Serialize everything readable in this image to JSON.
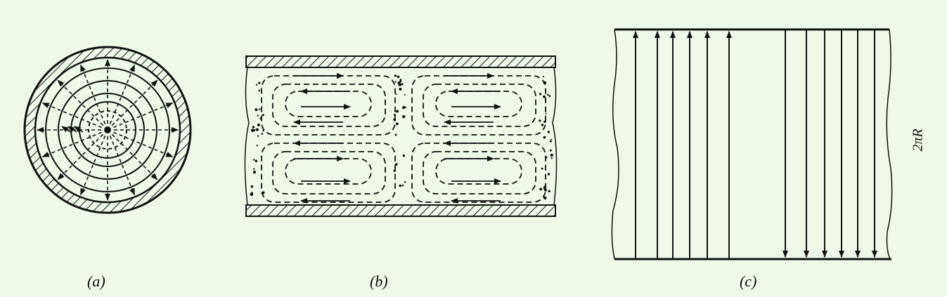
{
  "figure": {
    "captions": {
      "a": "(a)",
      "b": "(b)",
      "c": "(c)"
    },
    "panel_c_side_label": "2πR",
    "colors": {
      "background": "#eef9ea",
      "ink": "#111111"
    }
  }
}
